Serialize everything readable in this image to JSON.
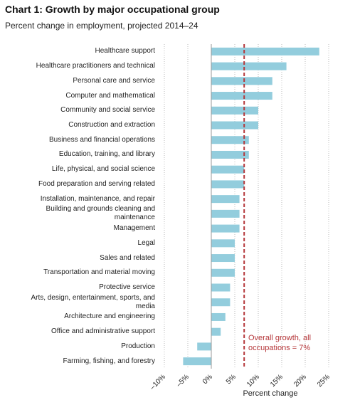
{
  "chart_data": {
    "type": "hbar",
    "title": "Chart 1: Growth by major occupational group",
    "subtitle": "Percent change in employment, projected 2014–24",
    "xlabel": "Percent change",
    "categories": [
      "Healthcare support",
      "Healthcare practitioners and technical",
      "Personal care and service",
      "Computer and mathematical",
      "Community and social service",
      "Construction and extraction",
      "Business and financial operations",
      "Education, training, and library",
      "Life, physical, and social science",
      "Food preparation and serving related",
      "Installation, maintenance, and repair",
      "Building and grounds cleaning and maintenance",
      "Management",
      "Legal",
      "Sales and related",
      "Transportation and material moving",
      "Protective service",
      "Arts, design, entertainment, sports, and media",
      "Architecture and engineering",
      "Office and administrative support",
      "Production",
      "Farming, fishing, and forestry"
    ],
    "values": [
      23,
      16,
      13,
      13,
      10,
      10,
      8,
      8,
      7,
      7,
      6,
      6,
      6,
      5,
      5,
      5,
      4,
      4,
      3,
      2,
      -3,
      -6
    ],
    "color": "#93cddd",
    "xlim": [
      -10,
      25
    ],
    "xticks": [
      {
        "value": -10,
        "label": "–10%"
      },
      {
        "value": -5,
        "label": "–5%"
      },
      {
        "value": 0,
        "label": "0%"
      },
      {
        "value": 5,
        "label": "5%"
      },
      {
        "value": 10,
        "label": "10%"
      },
      {
        "value": 15,
        "label": "15%"
      },
      {
        "value": 20,
        "label": "20%"
      },
      {
        "value": 25,
        "label": "25%"
      }
    ],
    "grid": true,
    "reference_line": {
      "value": 7,
      "color": "#b5373a",
      "label": "Overall growth, all occupations = 7%"
    }
  }
}
